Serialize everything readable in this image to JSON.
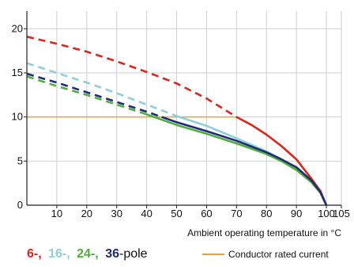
{
  "chart_data": {
    "type": "line",
    "xlabel": "Ambient operating temperature in °C",
    "xlim": [
      0,
      105
    ],
    "ylim": [
      0,
      22
    ],
    "x_ticks": [
      10,
      20,
      30,
      40,
      50,
      60,
      70,
      80,
      90,
      100,
      105
    ],
    "y_ticks": [
      5,
      10,
      15,
      20
    ],
    "y_tick_labels": [
      "5",
      "10",
      "15",
      "20"
    ],
    "y_zero_label": "0",
    "grid": true,
    "series": [
      {
        "name": "6-pole",
        "color": "#e0231c",
        "dashed_until_x": 70,
        "x": [
          0,
          10,
          20,
          30,
          40,
          50,
          60,
          70,
          75,
          80,
          85,
          90,
          95,
          98,
          100
        ],
        "y": [
          19.1,
          18.3,
          17.4,
          16.3,
          15.1,
          13.8,
          12.1,
          10.0,
          9.1,
          8.0,
          6.7,
          5.2,
          3.0,
          1.6,
          0
        ]
      },
      {
        "name": "16-pole",
        "color": "#8ecfd9",
        "dashed_until_x": 50,
        "x": [
          0,
          10,
          20,
          30,
          40,
          50,
          60,
          70,
          80,
          85,
          90,
          95,
          98,
          100
        ],
        "y": [
          16.1,
          15.0,
          13.9,
          12.7,
          11.4,
          10.1,
          9.0,
          7.6,
          6.1,
          5.2,
          4.1,
          2.6,
          1.4,
          0
        ]
      },
      {
        "name": "24-",
        "color": "#4caf3a",
        "dashed_until_x": 40,
        "x": [
          0,
          10,
          20,
          30,
          40,
          50,
          60,
          70,
          80,
          85,
          90,
          95,
          98,
          100
        ],
        "y": [
          14.6,
          13.5,
          12.5,
          11.4,
          10.3,
          9.1,
          8.1,
          7.0,
          5.8,
          5.0,
          4.0,
          2.6,
          1.4,
          0
        ]
      },
      {
        "name": "36-pole",
        "color": "#1f2a7a",
        "dashed_until_x": 45,
        "x": [
          0,
          10,
          20,
          30,
          40,
          50,
          60,
          70,
          80,
          85,
          90,
          95,
          98,
          100
        ],
        "y": [
          14.9,
          13.9,
          12.8,
          11.7,
          10.6,
          9.4,
          8.4,
          7.3,
          6.0,
          5.2,
          4.3,
          2.8,
          1.5,
          0
        ]
      }
    ],
    "reference_line": {
      "name": "Conductor rated current",
      "color": "#f0a030",
      "y": 10,
      "x_range": [
        0,
        70
      ]
    },
    "legend": {
      "items": [
        {
          "text": "6-,",
          "color": "#e0231c"
        },
        {
          "text": "16-,",
          "color": "#8ecfd9"
        },
        {
          "text": "24-,",
          "color": "#4caf3a"
        },
        {
          "text": "36",
          "color": "#1f2a7a"
        },
        {
          "text": "-pole",
          "color": "#111111"
        }
      ],
      "rated_label": "Conductor rated current",
      "placement": "bottom"
    }
  }
}
